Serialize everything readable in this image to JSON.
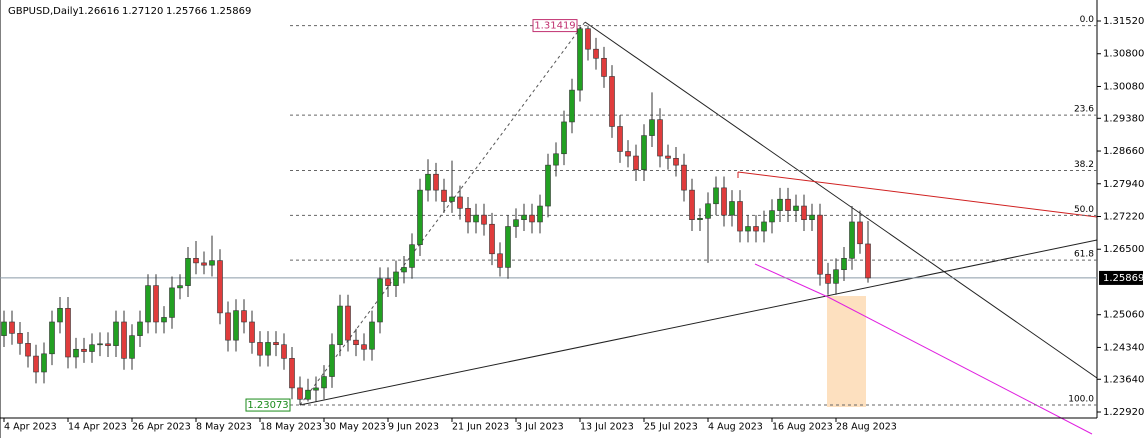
{
  "header": {
    "symbol": "GBPUSD,Daily",
    "ohlc": [
      "1.26616",
      "1.27120",
      "1.25766",
      "1.25869"
    ]
  },
  "chart_data": {
    "type": "candlestick",
    "categories": [
      "4 Apr 2023",
      null,
      null,
      null,
      null,
      null,
      null,
      null,
      "14 Apr 2023",
      null,
      null,
      null,
      null,
      null,
      null,
      null,
      "26 Apr 2023",
      null,
      null,
      null,
      null,
      null,
      null,
      null,
      "8 May 2023",
      null,
      null,
      null,
      null,
      null,
      null,
      null,
      "18 May 2023",
      null,
      null,
      null,
      null,
      null,
      null,
      null,
      "30 May 2023",
      null,
      null,
      null,
      null,
      null,
      null,
      null,
      "9 Jun 2023",
      null,
      null,
      null,
      null,
      null,
      null,
      null,
      "21 Jun 2023",
      null,
      null,
      null,
      null,
      null,
      null,
      null,
      "3 Jul 2023",
      null,
      null,
      null,
      null,
      null,
      null,
      null,
      "13 Jul 2023",
      null,
      null,
      null,
      null,
      null,
      null,
      null,
      "25 Jul 2023",
      null,
      null,
      null,
      null,
      null,
      null,
      null,
      "4 Aug 2023",
      null,
      null,
      null,
      null,
      null,
      null,
      null,
      "16 Aug 2023",
      null,
      null,
      null,
      null,
      null,
      null,
      null,
      "28 Aug 2023",
      null,
      null,
      null,
      null
    ],
    "open": [
      1.246,
      1.249,
      1.2465,
      1.2443,
      1.2415,
      1.238,
      1.242,
      1.249,
      1.252,
      1.2413,
      1.243,
      1.2425,
      1.244,
      1.2442,
      1.2438,
      1.249,
      1.241,
      1.246,
      1.249,
      1.257,
      1.249,
      1.25,
      1.2565,
      1.257,
      1.263,
      1.262,
      1.2615,
      1.2625,
      1.251,
      1.245,
      1.2515,
      1.249,
      1.2445,
      1.2417,
      1.2445,
      1.244,
      1.241,
      1.2345,
      1.232,
      1.234,
      1.2345,
      1.237,
      1.244,
      1.2525,
      1.245,
      1.244,
      1.243,
      1.249,
      1.2585,
      1.257,
      1.26,
      1.261,
      1.266,
      1.278,
      1.2815,
      1.278,
      1.2755,
      1.2765,
      1.274,
      1.271,
      1.2725,
      1.2705,
      1.264,
      1.261,
      1.27,
      1.2715,
      1.2725,
      1.271,
      1.2745,
      1.2835,
      1.286,
      1.293,
      1.3,
      1.3135,
      1.309,
      1.307,
      1.303,
      1.292,
      1.2865,
      1.2855,
      1.2825,
      1.29,
      1.2935,
      1.2855,
      1.285,
      1.2835,
      1.278,
      1.2715,
      1.2718,
      1.275,
      1.2785,
      1.2725,
      1.2755,
      1.269,
      1.27,
      1.269,
      1.271,
      1.2735,
      1.276,
      1.2735,
      1.2745,
      1.2715,
      1.2725,
      1.2595,
      1.2575,
      1.2605,
      1.263,
      1.271,
      1.26616
    ],
    "high": [
      1.2515,
      1.2515,
      1.249,
      1.2468,
      1.244,
      1.2445,
      1.2515,
      1.2545,
      1.2545,
      1.2455,
      1.2455,
      1.2465,
      1.2467,
      1.2467,
      1.2515,
      1.2515,
      1.2485,
      1.2515,
      1.2595,
      1.2595,
      1.2525,
      1.259,
      1.2595,
      1.2655,
      1.2668,
      1.2645,
      1.268,
      1.265,
      1.2535,
      1.254,
      1.254,
      1.2515,
      1.247,
      1.247,
      1.247,
      1.2465,
      1.2435,
      1.237,
      1.2365,
      1.237,
      1.2395,
      1.2465,
      1.255,
      1.255,
      1.2475,
      1.2465,
      1.2515,
      1.261,
      1.261,
      1.2625,
      1.2635,
      1.2685,
      1.2805,
      1.2848,
      1.284,
      1.2805,
      1.2845,
      1.279,
      1.2765,
      1.275,
      1.275,
      1.273,
      1.2665,
      1.2725,
      1.274,
      1.275,
      1.275,
      1.277,
      1.286,
      1.2885,
      1.2955,
      1.3025,
      1.314,
      1.31419,
      1.3115,
      1.3095,
      1.3055,
      1.2945,
      1.289,
      1.288,
      1.2925,
      1.2995,
      1.296,
      1.288,
      1.2875,
      1.286,
      1.2805,
      1.274,
      1.2775,
      1.281,
      1.281,
      1.278,
      1.278,
      1.2725,
      1.2725,
      1.2735,
      1.276,
      1.2785,
      1.2785,
      1.277,
      1.277,
      1.275,
      1.275,
      1.262,
      1.263,
      1.2655,
      1.2745,
      1.2735,
      1.2712
    ],
    "low": [
      1.2435,
      1.244,
      1.2418,
      1.239,
      1.2355,
      1.2355,
      1.2395,
      1.2465,
      1.2388,
      1.2388,
      1.24,
      1.24,
      1.2415,
      1.2413,
      1.2413,
      1.2385,
      1.2385,
      1.2435,
      1.2465,
      1.2465,
      1.2465,
      1.2475,
      1.254,
      1.2545,
      1.2595,
      1.2595,
      1.259,
      1.2485,
      1.2425,
      1.2425,
      1.2465,
      1.242,
      1.2392,
      1.2392,
      1.2415,
      1.2385,
      1.232,
      1.23073,
      1.2315,
      1.2315,
      1.232,
      1.2345,
      1.2415,
      1.2425,
      1.2415,
      1.2405,
      1.2405,
      1.2465,
      1.2545,
      1.2545,
      1.2575,
      1.2585,
      1.2635,
      1.2755,
      1.2755,
      1.273,
      1.273,
      1.2715,
      1.2685,
      1.2685,
      1.268,
      1.2615,
      1.259,
      1.2585,
      1.2675,
      1.269,
      1.2685,
      1.2685,
      1.272,
      1.281,
      1.2835,
      1.2905,
      1.2975,
      1.3065,
      1.3045,
      1.3005,
      1.2895,
      1.284,
      1.283,
      1.28,
      1.28,
      1.2875,
      1.283,
      1.2825,
      1.281,
      1.2755,
      1.269,
      1.269,
      1.262,
      1.2725,
      1.27,
      1.27,
      1.2665,
      1.2665,
      1.2665,
      1.2665,
      1.2685,
      1.271,
      1.271,
      1.271,
      1.269,
      1.269,
      1.257,
      1.255,
      1.255,
      1.258,
      1.2605,
      1.264,
      1.25766
    ],
    "close": [
      1.249,
      1.2465,
      1.2443,
      1.2415,
      1.238,
      1.242,
      1.249,
      1.252,
      1.2413,
      1.243,
      1.2425,
      1.244,
      1.2442,
      1.2438,
      1.249,
      1.241,
      1.246,
      1.249,
      1.257,
      1.249,
      1.25,
      1.2565,
      1.257,
      1.263,
      1.262,
      1.2615,
      1.2625,
      1.251,
      1.245,
      1.2515,
      1.249,
      1.2445,
      1.2417,
      1.2445,
      1.244,
      1.241,
      1.2345,
      1.232,
      1.234,
      1.2345,
      1.237,
      1.244,
      1.2525,
      1.245,
      1.244,
      1.243,
      1.249,
      1.2585,
      1.257,
      1.26,
      1.261,
      1.266,
      1.278,
      1.2815,
      1.278,
      1.2755,
      1.2765,
      1.274,
      1.271,
      1.2725,
      1.2705,
      1.264,
      1.261,
      1.27,
      1.2715,
      1.2725,
      1.271,
      1.2745,
      1.2835,
      1.286,
      1.293,
      1.3,
      1.3135,
      1.309,
      1.307,
      1.303,
      1.292,
      1.2865,
      1.2855,
      1.2825,
      1.29,
      1.2935,
      1.2855,
      1.285,
      1.2835,
      1.278,
      1.2715,
      1.2718,
      1.275,
      1.2785,
      1.2725,
      1.2755,
      1.269,
      1.27,
      1.269,
      1.271,
      1.2735,
      1.276,
      1.2735,
      1.2745,
      1.2715,
      1.2725,
      1.2595,
      1.2575,
      1.2605,
      1.263,
      1.271,
      1.2662,
      1.25869
    ],
    "up_color": "#22a022",
    "down_color": "#e03c3c",
    "ylim": [
      1.2292,
      1.3152
    ],
    "yticks": [
      {
        "value": 1.3152,
        "label": "1.31520"
      },
      {
        "value": 1.308,
        "label": "1.30800"
      },
      {
        "value": 1.3008,
        "label": "1.30080"
      },
      {
        "value": 1.2938,
        "label": "1.29380"
      },
      {
        "value": 1.2866,
        "label": "1.28660"
      },
      {
        "value": 1.2794,
        "label": "1.27940"
      },
      {
        "value": 1.2722,
        "label": "1.27220"
      },
      {
        "value": 1.265,
        "label": "1.26500"
      },
      {
        "value": 1.2506,
        "label": "1.25060"
      },
      {
        "value": 1.2434,
        "label": "1.24340"
      },
      {
        "value": 1.2364,
        "label": "1.23640"
      },
      {
        "value": 1.2292,
        "label": "1.22920"
      }
    ],
    "fib": {
      "high": 1.31419,
      "low": 1.23073,
      "levels": [
        {
          "value": 0,
          "label": "0.0"
        },
        23.6,
        38.2,
        {
          "value": 50,
          "label": "50.0"
        },
        61.8,
        {
          "value": 100,
          "label": "100.0"
        }
      ]
    }
  }
}
